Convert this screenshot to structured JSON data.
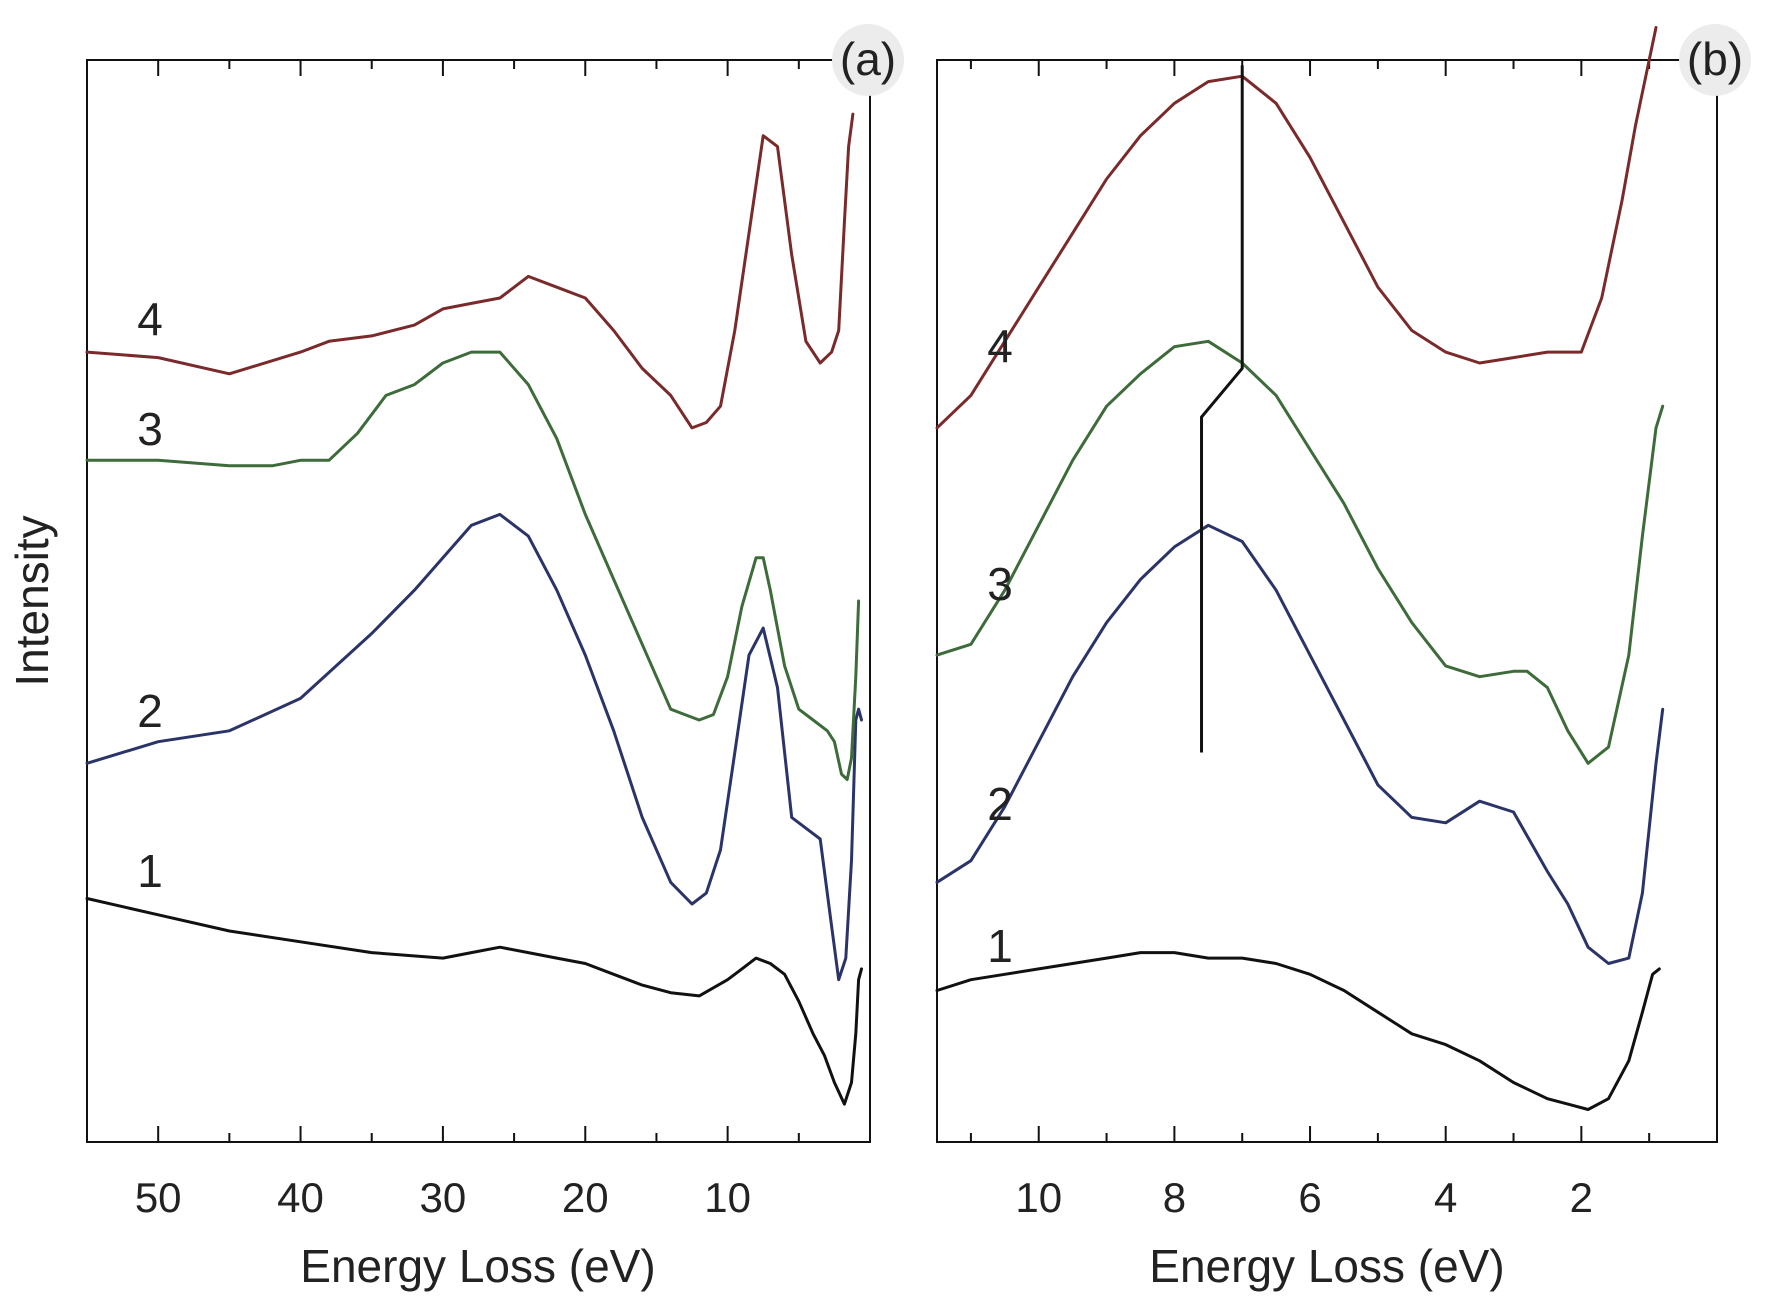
{
  "chart_data": [
    {
      "panel_label": "(a)",
      "type": "line",
      "xlabel": "Energy Loss (eV)",
      "ylabel": "Intensity",
      "xlim": [
        55,
        0
      ],
      "ylim": [
        0,
        10
      ],
      "x_ticks": [
        50,
        40,
        30,
        20,
        10
      ],
      "x_tick_labels": [
        "50",
        "40",
        "30",
        "20",
        "10"
      ],
      "x_minor_ticks": [
        55,
        45,
        35,
        25,
        15,
        5
      ],
      "series": [
        {
          "name": "1",
          "label": "1",
          "color": "#111111",
          "x": [
            55,
            50,
            45,
            40,
            35,
            30,
            28,
            26,
            24,
            22,
            20,
            18,
            16,
            14,
            12,
            10,
            9,
            8,
            7,
            6,
            5,
            4,
            3.2,
            2.5,
            1.8,
            1.3,
            1.0,
            0.8,
            0.6
          ],
          "y": [
            2.25,
            2.1,
            1.95,
            1.85,
            1.75,
            1.7,
            1.75,
            1.8,
            1.75,
            1.7,
            1.65,
            1.55,
            1.45,
            1.38,
            1.35,
            1.5,
            1.6,
            1.7,
            1.65,
            1.55,
            1.3,
            1.0,
            0.8,
            0.55,
            0.35,
            0.55,
            1.0,
            1.5,
            1.6
          ]
        },
        {
          "name": "2",
          "label": "2",
          "color": "#2a3468",
          "x": [
            55,
            50,
            45,
            40,
            35,
            32,
            30,
            28,
            26,
            24,
            22,
            20,
            18,
            16,
            14,
            12.5,
            11.5,
            10.5,
            9.5,
            8.5,
            7.5,
            6.5,
            5.5,
            4.5,
            3.5,
            2.8,
            2.2,
            1.7,
            1.3,
            1.0,
            0.8,
            0.6
          ],
          "y": [
            3.5,
            3.7,
            3.8,
            4.1,
            4.7,
            5.1,
            5.4,
            5.7,
            5.8,
            5.6,
            5.1,
            4.5,
            3.8,
            3.0,
            2.4,
            2.2,
            2.3,
            2.7,
            3.6,
            4.5,
            4.75,
            4.2,
            3.0,
            2.9,
            2.8,
            2.1,
            1.5,
            1.7,
            2.6,
            3.9,
            4.0,
            3.9
          ]
        },
        {
          "name": "3",
          "label": "3",
          "color": "#3d6b3a",
          "x": [
            55,
            50,
            45,
            42,
            40,
            38,
            36,
            34,
            32,
            30,
            28,
            26,
            24,
            22,
            20,
            18,
            16,
            14,
            13,
            12,
            11,
            10,
            9,
            8,
            7.5,
            7,
            6,
            5,
            4,
            3,
            2.5,
            2,
            1.6,
            1.3,
            1.0,
            0.8
          ],
          "y": [
            6.3,
            6.3,
            6.25,
            6.25,
            6.3,
            6.3,
            6.55,
            6.9,
            7.0,
            7.2,
            7.3,
            7.3,
            7.0,
            6.5,
            5.8,
            5.2,
            4.6,
            4.0,
            3.95,
            3.9,
            3.95,
            4.3,
            4.95,
            5.4,
            5.4,
            5.1,
            4.4,
            4.0,
            3.9,
            3.8,
            3.7,
            3.4,
            3.35,
            3.55,
            4.3,
            5.0
          ]
        },
        {
          "name": "4",
          "label": "4",
          "color": "#7a2a2a",
          "x": [
            55,
            50,
            45,
            40,
            38,
            35,
            32,
            30,
            28,
            26,
            24,
            22,
            20,
            18,
            16,
            14,
            12.5,
            11.5,
            10.5,
            9.5,
            8.5,
            7.5,
            6.5,
            5.5,
            4.5,
            3.5,
            2.7,
            2.2,
            1.8,
            1.5,
            1.2
          ],
          "y": [
            7.3,
            7.25,
            7.1,
            7.3,
            7.4,
            7.45,
            7.55,
            7.7,
            7.75,
            7.8,
            8.0,
            7.9,
            7.8,
            7.5,
            7.15,
            6.9,
            6.6,
            6.65,
            6.8,
            7.5,
            8.4,
            9.3,
            9.2,
            8.2,
            7.4,
            7.2,
            7.3,
            7.5,
            8.5,
            9.2,
            9.5
          ]
        }
      ]
    },
    {
      "panel_label": "(b)",
      "type": "line",
      "xlabel": "Energy Loss (eV)",
      "xlim": [
        11.5,
        0
      ],
      "ylim": [
        0,
        10
      ],
      "x_ticks": [
        10,
        8,
        6,
        4,
        2
      ],
      "x_tick_labels": [
        "10",
        "8",
        "6",
        "4",
        "2"
      ],
      "x_minor_ticks": [
        11,
        9,
        7,
        5,
        3,
        1
      ],
      "series": [
        {
          "name": "1",
          "label": "1",
          "color": "#111111",
          "x": [
            11.5,
            11,
            10.5,
            10,
            9.5,
            9,
            8.5,
            8,
            7.5,
            7,
            6.5,
            6,
            5.5,
            5,
            4.5,
            4,
            3.5,
            3,
            2.5,
            2.2,
            1.9,
            1.6,
            1.3,
            1.1,
            0.95,
            0.85
          ],
          "y": [
            1.4,
            1.5,
            1.55,
            1.6,
            1.65,
            1.7,
            1.75,
            1.75,
            1.7,
            1.7,
            1.65,
            1.55,
            1.4,
            1.2,
            1.0,
            0.9,
            0.75,
            0.55,
            0.4,
            0.35,
            0.3,
            0.4,
            0.75,
            1.2,
            1.55,
            1.6
          ]
        },
        {
          "name": "2",
          "label": "2",
          "color": "#2a3468",
          "x": [
            11.5,
            11,
            10.5,
            10,
            9.5,
            9,
            8.5,
            8,
            7.5,
            7,
            6.5,
            6,
            5.5,
            5,
            4.5,
            4,
            3.5,
            3,
            2.5,
            2.2,
            1.9,
            1.6,
            1.3,
            1.1,
            0.9,
            0.8
          ],
          "y": [
            2.4,
            2.6,
            3.1,
            3.7,
            4.3,
            4.8,
            5.2,
            5.5,
            5.7,
            5.55,
            5.1,
            4.5,
            3.9,
            3.3,
            3.0,
            2.95,
            3.15,
            3.05,
            2.5,
            2.2,
            1.8,
            1.65,
            1.7,
            2.3,
            3.5,
            4.0
          ]
        },
        {
          "name": "3",
          "label": "3",
          "color": "#3d6b3a",
          "x": [
            11.5,
            11,
            10.5,
            10,
            9.5,
            9,
            8.5,
            8,
            7.5,
            7,
            6.5,
            6,
            5.5,
            5,
            4.5,
            4,
            3.5,
            3,
            2.8,
            2.5,
            2.2,
            1.9,
            1.6,
            1.3,
            1.1,
            0.9,
            0.8
          ],
          "y": [
            4.5,
            4.6,
            5.1,
            5.7,
            6.3,
            6.8,
            7.1,
            7.35,
            7.4,
            7.2,
            6.9,
            6.4,
            5.9,
            5.3,
            4.8,
            4.4,
            4.3,
            4.35,
            4.35,
            4.2,
            3.8,
            3.5,
            3.65,
            4.5,
            5.6,
            6.6,
            6.8
          ]
        },
        {
          "name": "4",
          "label": "4",
          "color": "#7a2a2a",
          "x": [
            11.5,
            11,
            10.5,
            10,
            9.5,
            9,
            8.5,
            8,
            7.5,
            7,
            6.5,
            6,
            5.5,
            5,
            4.5,
            4,
            3.5,
            3,
            2.5,
            2,
            1.7,
            1.4,
            1.2,
            1.0,
            0.9
          ],
          "y": [
            6.6,
            6.9,
            7.4,
            7.9,
            8.4,
            8.9,
            9.3,
            9.6,
            9.8,
            9.85,
            9.6,
            9.1,
            8.5,
            7.9,
            7.5,
            7.3,
            7.2,
            7.25,
            7.3,
            7.3,
            7.8,
            8.7,
            9.4,
            10.0,
            10.3
          ]
        }
      ],
      "peak_marker": {
        "description": "Vertical black line through peak positions of curves 2-4",
        "lower_segment_x": 7.6,
        "upper_segment_x": 7.0,
        "lower_y_range": [
          3.6,
          6.7
        ],
        "upper_y_range": [
          7.15,
          9.95
        ]
      }
    }
  ]
}
